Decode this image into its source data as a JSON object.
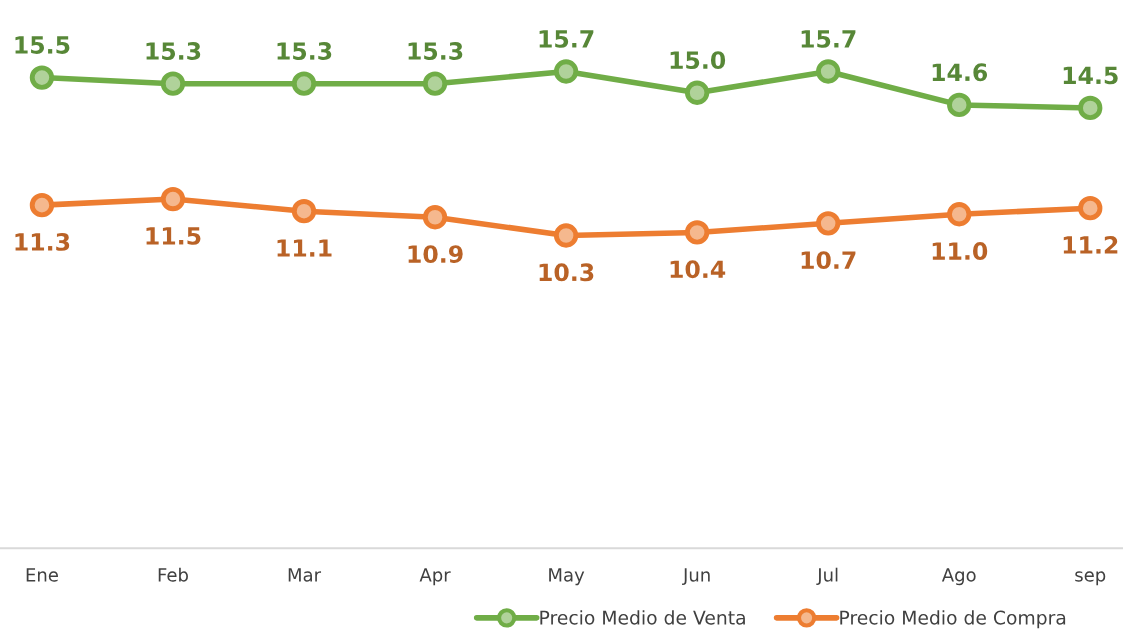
{
  "chart_data": {
    "type": "line",
    "categories": [
      "Ene",
      "Feb",
      "Mar",
      "Apr",
      "May",
      "Jun",
      "Jul",
      "Ago",
      "sep"
    ],
    "series": [
      {
        "name": "Precio Medio de Venta",
        "color": "#70ad47",
        "values": [
          15.5,
          15.3,
          15.3,
          15.3,
          15.7,
          15.0,
          15.7,
          14.6,
          14.5
        ],
        "value_labels": [
          "15.5",
          "15.3",
          "15.3",
          "15.3",
          "15.7",
          "15.0",
          "15.7",
          "14.6",
          "14.5"
        ]
      },
      {
        "name": "Precio Medio de Compra",
        "color": "#ed7d31",
        "values": [
          11.3,
          11.5,
          11.1,
          10.9,
          10.3,
          10.4,
          10.7,
          11.0,
          11.2
        ],
        "value_labels": [
          "11.3",
          "11.5",
          "11.1",
          "10.9",
          "10.3",
          "10.4",
          "10.7",
          "11.0",
          "11.2"
        ]
      }
    ],
    "tick_labels": "x",
    "grid": false,
    "legend": "bottom",
    "marker": "circle",
    "line_style": "solid"
  }
}
